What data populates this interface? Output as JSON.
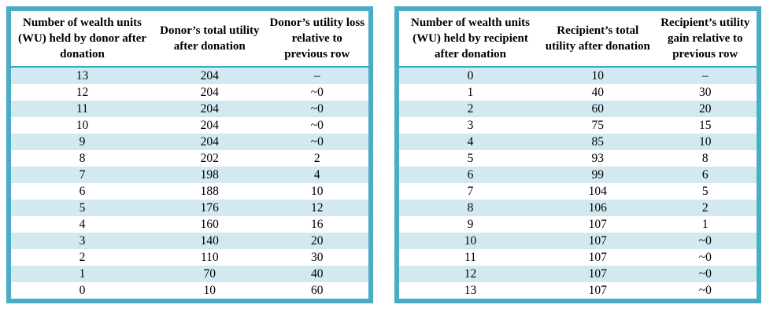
{
  "colors": {
    "table_border": "#4BACC6",
    "row_stripe": "#D2E9F2",
    "header_rule": "#35A3CB",
    "text": "#000000",
    "background": "#FFFFFF"
  },
  "chart_data": [
    {
      "type": "table",
      "name": "donor-utility-table",
      "headers": [
        "Number of wealth units (WU) held by donor after donation",
        "Donor’s total utility after donation",
        "Donor’s utility loss relative to previous row"
      ],
      "rows": [
        [
          "13",
          "204",
          "–"
        ],
        [
          "12",
          "204",
          "~0"
        ],
        [
          "11",
          "204",
          "~0"
        ],
        [
          "10",
          "204",
          "~0"
        ],
        [
          "9",
          "204",
          "~0"
        ],
        [
          "8",
          "202",
          "2"
        ],
        [
          "7",
          "198",
          "4"
        ],
        [
          "6",
          "188",
          "10"
        ],
        [
          "5",
          "176",
          "12"
        ],
        [
          "4",
          "160",
          "16"
        ],
        [
          "3",
          "140",
          "20"
        ],
        [
          "2",
          "110",
          "30"
        ],
        [
          "1",
          "70",
          "40"
        ],
        [
          "0",
          "10",
          "60"
        ]
      ]
    },
    {
      "type": "table",
      "name": "recipient-utility-table",
      "headers": [
        "Number of wealth units (WU) held by recipient after donation",
        "Recipient’s total utility after donation",
        "Recipient’s utility gain relative to previous row"
      ],
      "rows": [
        [
          "0",
          "10",
          "–"
        ],
        [
          "1",
          "40",
          "30"
        ],
        [
          "2",
          "60",
          "20"
        ],
        [
          "3",
          "75",
          "15"
        ],
        [
          "4",
          "85",
          "10"
        ],
        [
          "5",
          "93",
          "8"
        ],
        [
          "6",
          "99",
          "6"
        ],
        [
          "7",
          "104",
          "5"
        ],
        [
          "8",
          "106",
          "2"
        ],
        [
          "9",
          "107",
          "1"
        ],
        [
          "10",
          "107",
          "~0"
        ],
        [
          "11",
          "107",
          "~0"
        ],
        [
          "12",
          "107",
          "~0"
        ],
        [
          "13",
          "107",
          "~0"
        ]
      ]
    }
  ]
}
